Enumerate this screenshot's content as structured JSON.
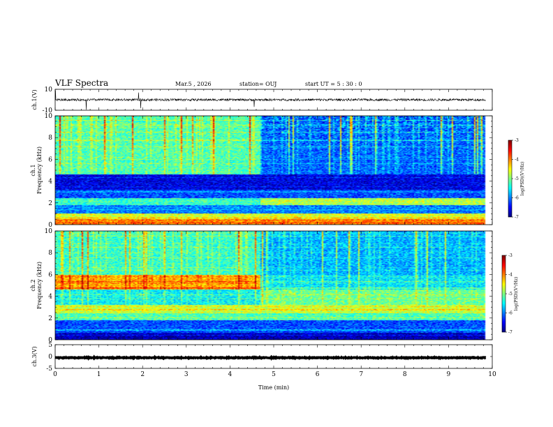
{
  "header": {
    "title": "VLF Spectra",
    "date": "Mar.5 , 2026",
    "station": "station= OUJ",
    "start": "start UT = 5 : 30 : 0"
  },
  "chart_data": [
    {
      "type": "line",
      "panel": "ch1-waveform",
      "ylabel": "ch.1(V)",
      "ylim": [
        -10,
        10
      ],
      "ytick_labels": [
        "10",
        "-10"
      ],
      "x_range_min": [
        0,
        9.85
      ],
      "series": [
        {
          "values_approx": "noise around 0 V, amplitude about ±1 V with occasional spikes to ±10 V"
        }
      ]
    },
    {
      "type": "heatmap",
      "panel": "ch1-spectrogram",
      "ylabel": "ch.1 Frequency (kHz)",
      "ylim_khz": [
        0,
        10
      ],
      "ytick_labels": [
        "0",
        "2",
        "4",
        "6",
        "8",
        "10"
      ],
      "xlim_min": [
        0,
        10
      ],
      "colorbar": {
        "label": "log(PSD)(V²/Hz)",
        "range": [
          -7,
          -3
        ],
        "tick_labels": [
          "-3",
          "-4",
          "-5",
          "-6",
          "-7"
        ]
      },
      "regime_change_min": 4.7,
      "bands": [
        {
          "f_khz": [
            0,
            0.5
          ],
          "level": -4.0
        },
        {
          "f_khz": [
            0.5,
            1.0
          ],
          "level": -4.6
        },
        {
          "f_khz": [
            1.0,
            1.8
          ],
          "level": -6.0
        },
        {
          "f_khz": [
            1.8,
            2.4
          ],
          "level": -5.3
        },
        {
          "f_khz": [
            2.4,
            3.2
          ],
          "level": -6.2
        },
        {
          "f_khz": [
            3.2,
            4.6
          ],
          "level": -6.6
        },
        {
          "f_khz": [
            4.6,
            10.0
          ],
          "level": -5.2
        }
      ]
    },
    {
      "type": "heatmap",
      "panel": "ch2-spectrogram",
      "ylabel": "ch.2 Frequency (kHz)",
      "ylim_khz": [
        0,
        10
      ],
      "ytick_labels": [
        "0",
        "2",
        "4",
        "6",
        "8",
        "10"
      ],
      "xlim_min": [
        0,
        10
      ],
      "colorbar": {
        "label": "log(PSD)(V²/Hz)",
        "range": [
          -7,
          -3
        ],
        "tick_labels": [
          "-3",
          "-4",
          "-5",
          "-6",
          "-7"
        ]
      },
      "regime_change_min": 4.7,
      "bands": [
        {
          "f_khz": [
            0,
            0.6
          ],
          "level": -6.8
        },
        {
          "f_khz": [
            0.6,
            1.8
          ],
          "level": -6.2
        },
        {
          "f_khz": [
            1.8,
            2.4
          ],
          "level": -5.2
        },
        {
          "f_khz": [
            2.4,
            3.2
          ],
          "level": -4.7
        },
        {
          "f_khz": [
            3.2,
            4.6
          ],
          "level": -5.5
        },
        {
          "f_khz": [
            4.6,
            6.0
          ],
          "level": -4.2
        },
        {
          "f_khz": [
            6.0,
            10.0
          ],
          "level": -5.3
        }
      ]
    },
    {
      "type": "line",
      "panel": "ch3-waveform",
      "ylabel": "ch.3(V)",
      "ylim": [
        -5,
        5
      ],
      "ytick_labels": [
        "5",
        "0",
        "-5"
      ],
      "x_range_min": [
        0,
        9.85
      ],
      "series": [
        {
          "values_approx": "flat near -0.5 V (thick trace)"
        }
      ]
    }
  ],
  "xaxis": {
    "label": "Time (min)",
    "tick_labels": [
      "0",
      "1",
      "2",
      "3",
      "4",
      "5",
      "6",
      "7",
      "8",
      "9",
      "10"
    ],
    "range": [
      0,
      10
    ]
  }
}
